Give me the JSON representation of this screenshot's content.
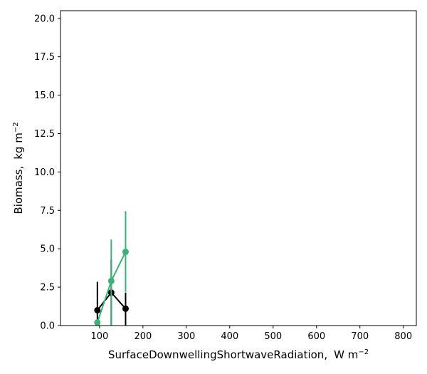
{
  "chart_data": {
    "type": "line",
    "title": "",
    "xlabel": "SurfaceDownwellingShortwaveRadiation,",
    "xlabel_unit": "W m",
    "xlabel_exp": "−2",
    "ylabel": "Biomass,",
    "ylabel_unit": "kg m",
    "ylabel_exp": "−2",
    "xlim": [
      10,
      830
    ],
    "ylim": [
      0,
      20.5
    ],
    "xticks": [
      100,
      200,
      300,
      400,
      500,
      600,
      700,
      800
    ],
    "xtick_labels": [
      "100",
      "200",
      "300",
      "400",
      "500",
      "600",
      "700",
      "800"
    ],
    "yticks": [
      0,
      2.5,
      5,
      7.5,
      10,
      12.5,
      15,
      17.5,
      20
    ],
    "ytick_labels": [
      "0.0",
      "2.5",
      "5.0",
      "7.5",
      "10.0",
      "12.5",
      "15.0",
      "17.5",
      "20.0"
    ],
    "series": [
      {
        "name": "black-series",
        "color": "#000000",
        "x": [
          95,
          127,
          160
        ],
        "y": [
          1.0,
          2.15,
          1.1
        ],
        "err_low": [
          1.0,
          2.15,
          1.1
        ],
        "err_high": [
          1.85,
          2.15,
          1.05
        ]
      },
      {
        "name": "green-series",
        "color": "#3cb077",
        "x": [
          95,
          127,
          160
        ],
        "y": [
          0.2,
          2.9,
          4.8
        ],
        "err_low": [
          0.2,
          2.9,
          2.6
        ],
        "err_high": [
          0.2,
          2.7,
          2.65
        ]
      }
    ]
  }
}
